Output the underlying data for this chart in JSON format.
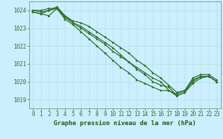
{
  "background_color": "#cceeff",
  "grid_color": "#aaddcc",
  "line_color": "#2d6e2d",
  "marker_color": "#2d6e2d",
  "xlabel": "Graphe pression niveau de la mer (hPa)",
  "xlabel_color": "#1a5c1a",
  "xlim": [
    -0.5,
    23.5
  ],
  "ylim": [
    1018.5,
    1024.5
  ],
  "yticks": [
    1019,
    1020,
    1021,
    1022,
    1023,
    1024
  ],
  "xticks": [
    0,
    1,
    2,
    3,
    4,
    5,
    6,
    7,
    8,
    9,
    10,
    11,
    12,
    13,
    14,
    15,
    16,
    17,
    18,
    19,
    20,
    21,
    22,
    23
  ],
  "series": [
    [
      1023.9,
      1023.8,
      1023.7,
      1024.1,
      1023.7,
      1023.3,
      1023.0,
      1022.7,
      1022.4,
      1022.1,
      1021.7,
      1021.4,
      1021.1,
      1020.7,
      1020.4,
      1020.0,
      1019.8,
      1019.7,
      1019.2,
      1019.4,
      1019.9,
      1020.2,
      1020.3,
      1020.0
    ],
    [
      1023.9,
      1023.8,
      1024.0,
      1024.1,
      1023.6,
      1023.3,
      1023.1,
      1022.8,
      1022.5,
      1022.2,
      1021.9,
      1021.5,
      1021.1,
      1020.8,
      1020.5,
      1020.2,
      1020.0,
      1019.5,
      1019.2,
      1019.4,
      1020.1,
      1020.3,
      1020.3,
      1020.0
    ],
    [
      1024.0,
      1023.9,
      1024.0,
      1024.2,
      1023.7,
      1023.4,
      1023.3,
      1023.1,
      1022.8,
      1022.5,
      1022.2,
      1021.9,
      1021.6,
      1021.2,
      1020.9,
      1020.5,
      1020.2,
      1019.8,
      1019.4,
      1019.5,
      1020.2,
      1020.4,
      1020.4,
      1020.1
    ],
    [
      1024.0,
      1024.0,
      1024.1,
      1024.1,
      1023.5,
      1023.2,
      1022.8,
      1022.4,
      1022.0,
      1021.6,
      1021.2,
      1020.8,
      1020.5,
      1020.1,
      1019.9,
      1019.7,
      1019.5,
      1019.5,
      1019.3,
      1019.5,
      1020.0,
      1020.3,
      1020.3,
      1020.0
    ]
  ],
  "tick_fontsize": 5.5,
  "xlabel_fontsize": 6.5,
  "tick_color": "#2d6e2d",
  "axis_color": "#5a8a5a",
  "linewidth": 0.9,
  "markersize": 2.0
}
